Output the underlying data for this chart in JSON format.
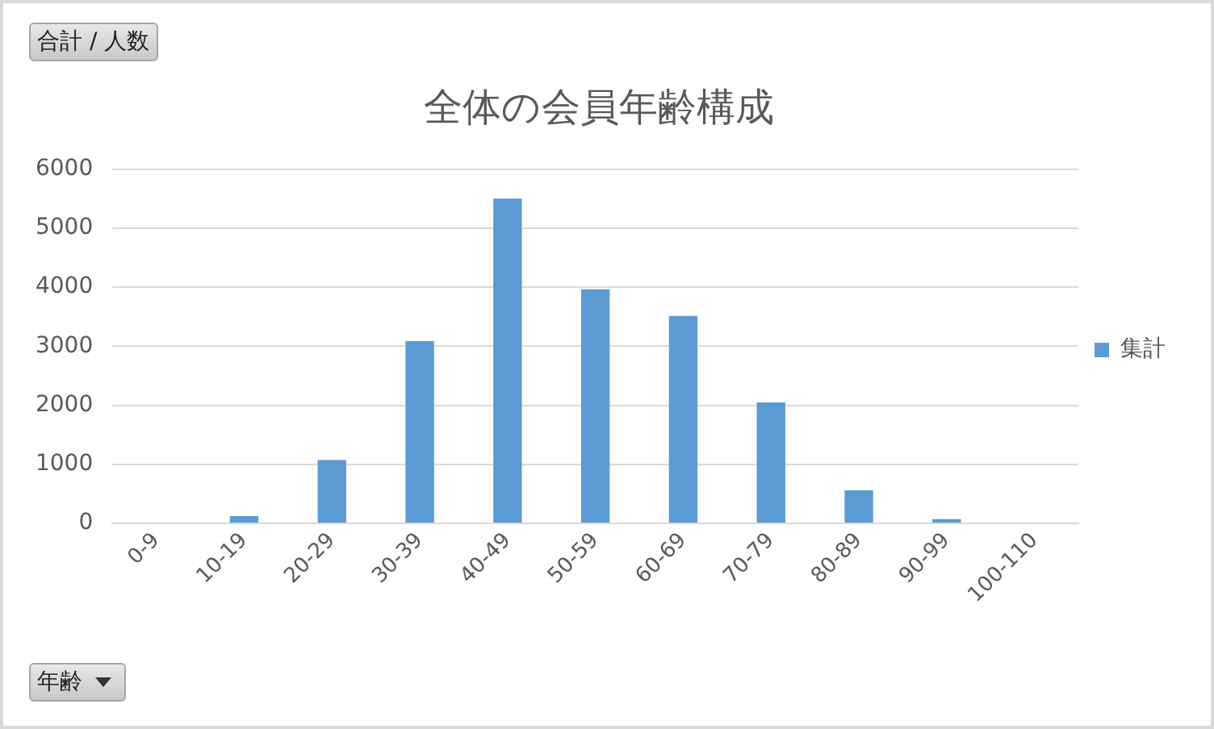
{
  "chart_data": {
    "type": "bar",
    "title": "全体の会員年齢構成",
    "annotations": [
      "合計 / 人数",
      "年齢"
    ],
    "categories": [
      "0-9",
      "10-19",
      "20-29",
      "30-39",
      "40-49",
      "50-59",
      "60-69",
      "70-79",
      "80-89",
      "90-99",
      "100-110"
    ],
    "series": [
      {
        "name": "集計",
        "color": "#5b9bd5",
        "values": [
          0,
          125,
          1075,
          3088,
          5500,
          3963,
          3513,
          2050,
          563,
          75,
          0
        ]
      }
    ],
    "ylim": [
      0,
      6000
    ],
    "yticks": [
      0,
      1000,
      2000,
      3000,
      4000,
      5000,
      6000
    ],
    "grid": "y",
    "legend": "right"
  }
}
